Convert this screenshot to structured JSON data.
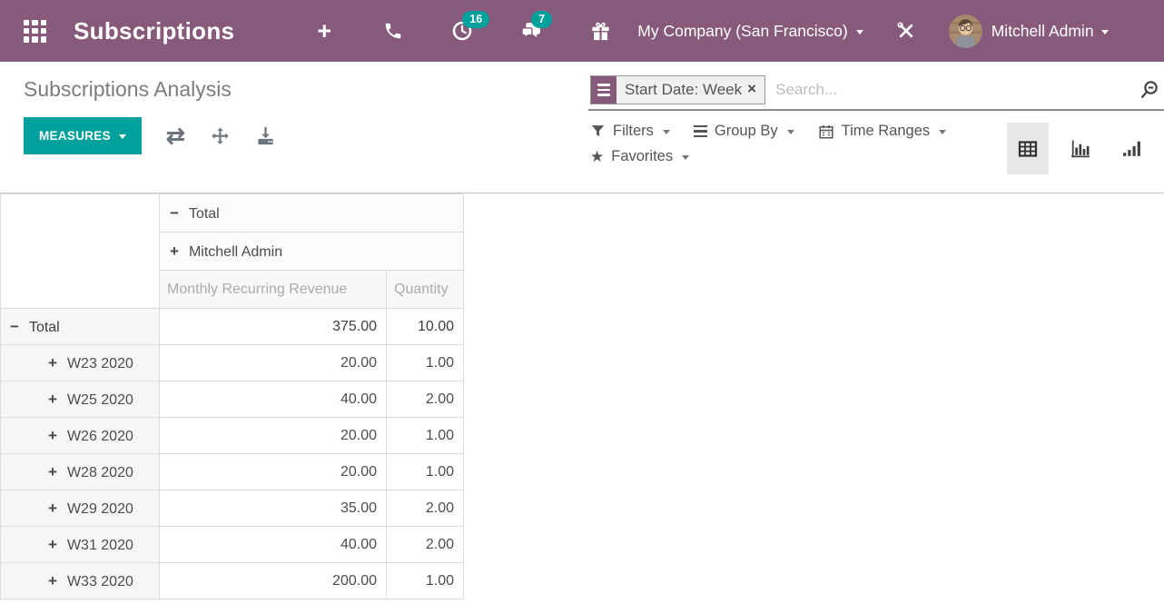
{
  "topbar": {
    "app_title": "Subscriptions",
    "company_menu": "My Company (San Francisco)",
    "user_menu": "Mitchell Admin",
    "activity_count": "16",
    "message_count": "7"
  },
  "control_panel": {
    "breadcrumb_title": "Subscriptions Analysis",
    "measures_button": "MEASURES",
    "search": {
      "facet_label": "Start Date: Week",
      "placeholder": "Search..."
    },
    "menus": {
      "filters": "Filters",
      "group_by": "Group By",
      "time_ranges": "Time Ranges",
      "favorites": "Favorites"
    }
  },
  "icons": {
    "add": "+",
    "flip_axes": "⇄",
    "star": "★",
    "facet_remove": "×",
    "collapse": "−",
    "expand": "+"
  },
  "colors": {
    "brand_purple": "#875A7B",
    "accent_teal": "#00A09D"
  },
  "pivot": {
    "column_headers": [
      {
        "label": "Total",
        "state": "expanded"
      },
      {
        "label": "Mitchell Admin",
        "state": "collapsed"
      }
    ],
    "measure_headers": [
      "Monthly Recurring Revenue",
      "Quantity"
    ],
    "rows": [
      {
        "label": "Total",
        "level": 0,
        "expanded": true,
        "bold": true,
        "values": [
          "375.00",
          "10.00"
        ]
      },
      {
        "label": "W23 2020",
        "level": 1,
        "expanded": false,
        "bold": false,
        "values": [
          "20.00",
          "1.00"
        ]
      },
      {
        "label": "W25 2020",
        "level": 1,
        "expanded": false,
        "bold": false,
        "values": [
          "40.00",
          "2.00"
        ]
      },
      {
        "label": "W26 2020",
        "level": 1,
        "expanded": false,
        "bold": false,
        "values": [
          "20.00",
          "1.00"
        ]
      },
      {
        "label": "W28 2020",
        "level": 1,
        "expanded": false,
        "bold": false,
        "values": [
          "20.00",
          "1.00"
        ]
      },
      {
        "label": "W29 2020",
        "level": 1,
        "expanded": false,
        "bold": false,
        "values": [
          "35.00",
          "2.00"
        ]
      },
      {
        "label": "W31 2020",
        "level": 1,
        "expanded": false,
        "bold": false,
        "values": [
          "40.00",
          "2.00"
        ]
      },
      {
        "label": "W33 2020",
        "level": 1,
        "expanded": false,
        "bold": false,
        "values": [
          "200.00",
          "1.00"
        ]
      }
    ]
  }
}
